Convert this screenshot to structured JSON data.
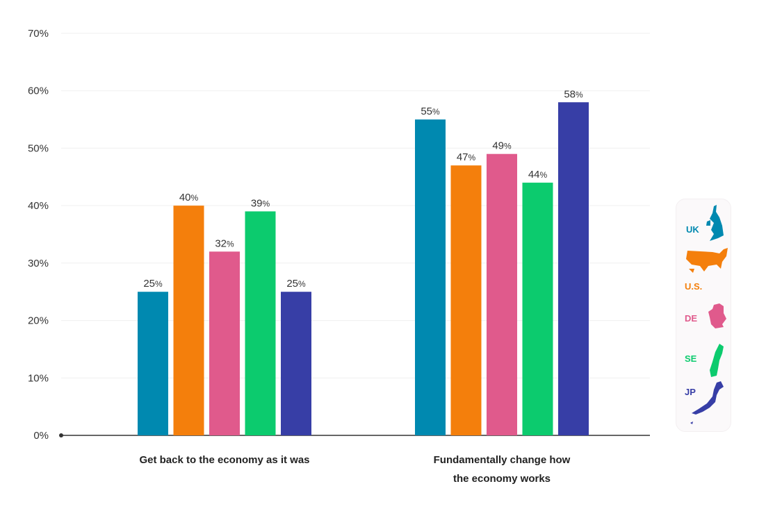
{
  "chart_data": {
    "type": "bar",
    "title": "",
    "xlabel": "",
    "ylabel": "",
    "ylim": [
      0,
      70
    ],
    "yticks": [
      "0%",
      "10%",
      "20%",
      "30%",
      "40%",
      "50%",
      "60%",
      "70%"
    ],
    "ytick_values": [
      0,
      10,
      20,
      30,
      40,
      50,
      60,
      70
    ],
    "grid": true,
    "categories": [
      [
        "Get back to the economy as it was"
      ],
      [
        "Fundamentally change how",
        "the economy works"
      ]
    ],
    "series": [
      {
        "name": "UK",
        "color": "#0089b0",
        "values": [
          25,
          55
        ]
      },
      {
        "name": "U.S.",
        "color": "#f47f0c",
        "values": [
          40,
          47
        ]
      },
      {
        "name": "DE",
        "color": "#e05a8c",
        "values": [
          32,
          49
        ]
      },
      {
        "name": "SE",
        "color": "#0ccb6e",
        "values": [
          39,
          44
        ]
      },
      {
        "name": "JP",
        "color": "#373ea6",
        "values": [
          25,
          58
        ]
      }
    ],
    "value_suffix": "%",
    "legend_placement": "right"
  }
}
